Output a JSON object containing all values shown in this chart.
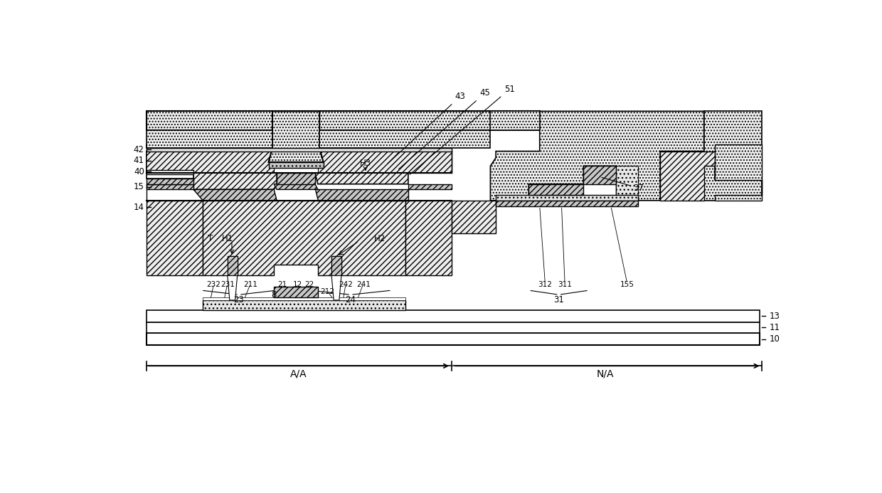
{
  "fig_width": 12.4,
  "fig_height": 6.93,
  "dpi": 100,
  "xlim": [
    0,
    1240
  ],
  "ylim": [
    0,
    693
  ],
  "bg": "#ffffff",
  "lc": "#000000",
  "gray_hatch": "#cccccc",
  "gray_fill": "#d8d8d8",
  "gray_light": "#eeeeee",
  "gray_dot": "#f0f0f0",
  "gray_med": "#e0e0e0"
}
